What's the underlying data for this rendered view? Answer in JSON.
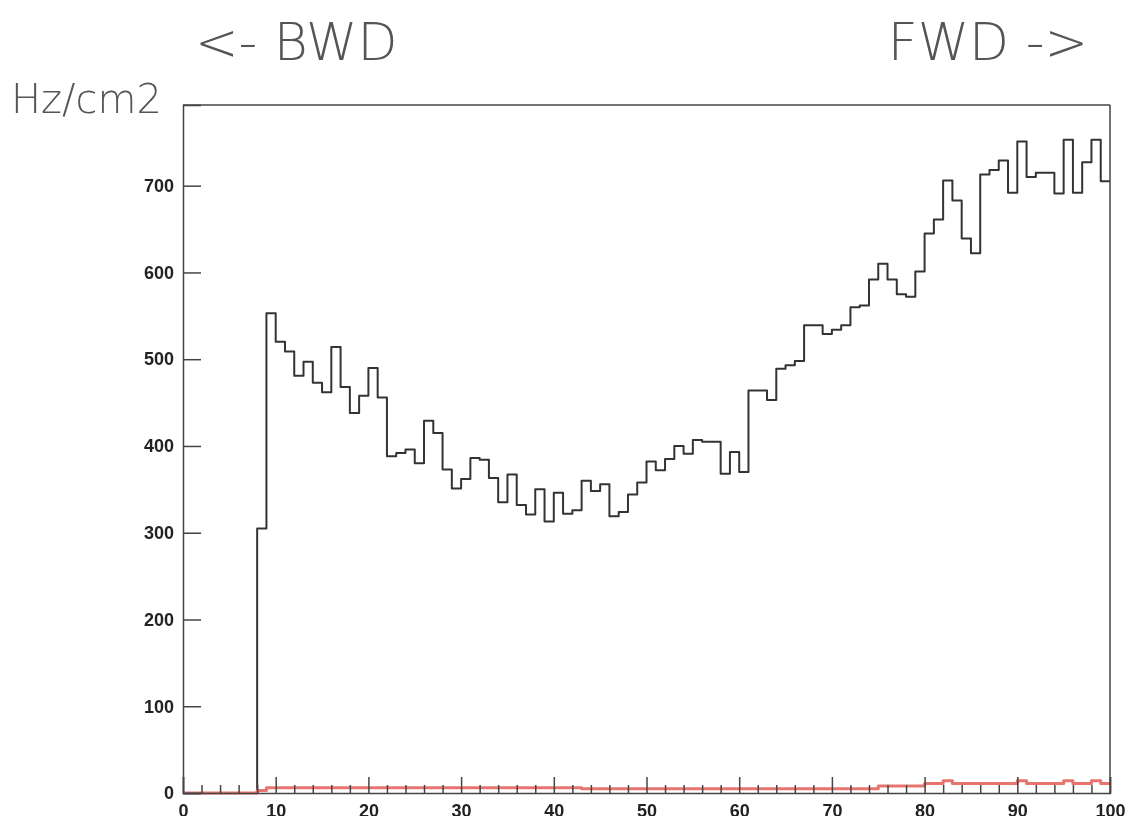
{
  "chart_data": {
    "type": "histogram",
    "ylabel": "Hz/cm2",
    "annotations": [
      "<- BWD",
      "FWD ->"
    ],
    "bins": [
      0,
      1,
      2,
      3,
      4,
      5,
      6,
      7,
      8,
      9,
      10,
      11,
      12,
      13,
      14,
      15,
      16,
      17,
      18,
      19,
      20,
      21,
      22,
      23,
      24,
      25,
      26,
      27,
      28,
      29,
      30,
      31,
      32,
      33,
      34,
      35,
      36,
      37,
      38,
      39,
      40,
      41,
      42,
      43,
      44,
      45,
      46,
      47,
      48,
      49,
      50,
      51,
      52,
      53,
      54,
      55,
      56,
      57,
      58,
      59,
      60,
      61,
      62,
      63,
      64,
      65,
      66,
      67,
      68,
      69,
      70,
      71,
      72,
      73,
      74,
      75,
      76,
      77,
      78,
      79,
      80,
      81,
      82,
      83,
      84,
      85,
      86,
      87,
      88,
      89,
      90,
      91,
      92,
      93,
      94,
      95,
      96,
      97,
      98,
      99,
      100
    ],
    "series": [
      {
        "color": "#333333",
        "values": [
          0,
          0,
          0,
          0,
          0,
          0,
          0,
          0,
          305,
          553,
          520,
          509,
          481,
          497,
          473,
          462,
          514,
          468,
          438,
          458,
          490,
          456,
          388,
          392,
          396,
          380,
          429,
          415,
          373,
          351,
          362,
          386,
          384,
          363,
          335,
          367,
          332,
          321,
          350,
          313,
          346,
          322,
          326,
          360,
          348,
          356,
          319,
          324,
          344,
          358,
          382,
          372,
          385,
          400,
          391,
          407,
          405,
          405,
          368,
          393,
          370,
          464,
          464,
          453,
          489,
          493,
          498,
          539,
          539,
          529,
          534,
          539,
          560,
          562,
          592,
          610,
          592,
          575,
          572,
          601,
          645,
          661,
          706,
          683,
          639,
          622,
          713,
          718,
          729,
          692,
          751,
          710,
          715,
          715,
          691,
          753,
          692,
          727,
          753,
          705
        ]
      },
      {
        "color": "#e8746f",
        "values": [
          0,
          0,
          0,
          0,
          0,
          0,
          0,
          0,
          3,
          6,
          6,
          6,
          6,
          6,
          6,
          6,
          6,
          6,
          6,
          6,
          6,
          6,
          6,
          6,
          6,
          6,
          6,
          6,
          6,
          6,
          6,
          6,
          6,
          6,
          6,
          6,
          6,
          6,
          6,
          6,
          6,
          6,
          6,
          5,
          5,
          5,
          5,
          5,
          5,
          5,
          5,
          5,
          5,
          5,
          5,
          5,
          5,
          5,
          5,
          5,
          5,
          5,
          5,
          5,
          5,
          5,
          5,
          5,
          5,
          5,
          5,
          5,
          5,
          5,
          5,
          8,
          8,
          8,
          8,
          8,
          11,
          11,
          14,
          11,
          11,
          11,
          11,
          11,
          11,
          11,
          14,
          11,
          11,
          11,
          11,
          14,
          11,
          11,
          14,
          11
        ]
      }
    ],
    "xlim": [
      0,
      100
    ],
    "xticks": [
      0,
      {
        "value": 2,
        "label": null
      },
      {
        "value": 4,
        "label": null
      },
      {
        "value": 6,
        "label": null
      },
      {
        "value": 8,
        "label": null
      },
      10,
      {
        "value": 12,
        "label": null
      },
      {
        "value": 14,
        "label": null
      },
      {
        "value": 16,
        "label": null
      },
      {
        "value": 18,
        "label": null
      },
      20,
      {
        "value": 22,
        "label": null
      },
      {
        "value": 24,
        "label": null
      },
      {
        "value": 26,
        "label": null
      },
      {
        "value": 28,
        "label": null
      },
      30,
      {
        "value": 32,
        "label": null
      },
      {
        "value": 34,
        "label": null
      },
      {
        "value": 36,
        "label": null
      },
      {
        "value": 38,
        "label": null
      },
      40,
      {
        "value": 42,
        "label": null
      },
      {
        "value": 44,
        "label": null
      },
      {
        "value": 46,
        "label": null
      },
      {
        "value": 48,
        "label": null
      },
      50,
      {
        "value": 52,
        "label": null
      },
      {
        "value": 54,
        "label": null
      },
      {
        "value": 56,
        "label": null
      },
      {
        "value": 58,
        "label": null
      },
      60,
      {
        "value": 62,
        "label": null
      },
      {
        "value": 64,
        "label": null
      },
      {
        "value": 66,
        "label": null
      },
      {
        "value": 68,
        "label": null
      },
      70,
      {
        "value": 72,
        "label": null
      },
      {
        "value": 74,
        "label": null
      },
      {
        "value": 76,
        "label": null
      },
      {
        "value": 78,
        "label": null
      },
      80,
      {
        "value": 82,
        "label": null
      },
      {
        "value": 84,
        "label": null
      },
      {
        "value": 86,
        "label": null
      },
      {
        "value": 88,
        "label": null
      },
      90,
      {
        "value": 92,
        "label": null
      },
      {
        "value": 94,
        "label": null
      },
      {
        "value": 96,
        "label": null
      },
      {
        "value": 98,
        "label": null
      },
      100
    ],
    "ylim": [
      0,
      793
    ],
    "yticks": [
      0,
      100,
      200,
      300,
      400,
      500,
      600,
      700
    ]
  }
}
